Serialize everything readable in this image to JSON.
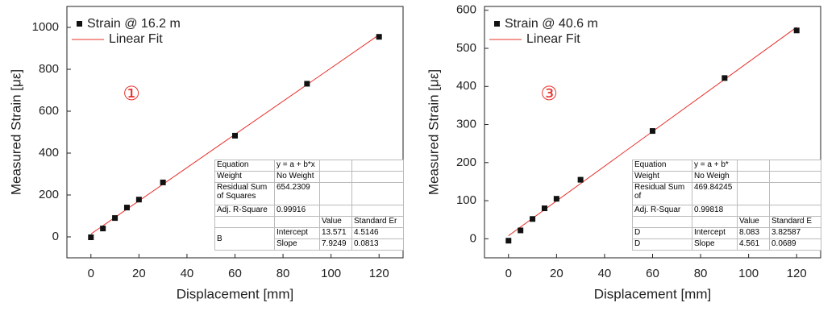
{
  "chart_data": [
    {
      "type": "scatter",
      "annotation": "①",
      "xlabel": "Displacement [mm]",
      "ylabel": "Measured Strain [με]",
      "x": [
        0,
        5,
        10,
        15,
        20,
        30,
        60,
        90,
        120
      ],
      "series": [
        {
          "name": "Strain @ 16.2 m",
          "color": "#111111",
          "values": [
            -2,
            40,
            90,
            140,
            178,
            260,
            483,
            731,
            955
          ]
        }
      ],
      "fit": {
        "name": "Linear Fit",
        "color": "#e8302a"
      },
      "xlim": [
        -10,
        130
      ],
      "xticks": [
        0,
        20,
        40,
        60,
        80,
        100,
        120
      ],
      "ylim": [
        -100,
        1100
      ],
      "yticks": [
        0,
        200,
        400,
        600,
        800,
        1000
      ],
      "table": {
        "equation_label": "Equation",
        "equation": "y = a + b*x",
        "weight_label": "Weight",
        "weight": "No Weight",
        "rss_label": "Residual Sum of Squares",
        "rss": "654.2309",
        "adj_label": "Adj. R-Square",
        "adj": "0.99916",
        "value_header": "Value",
        "se_header": "Standard Er",
        "rows": [
          {
            "name": "B",
            "param": "Intercept",
            "value": 13.571,
            "se": 4.5146
          },
          {
            "param": "Slope",
            "value": 7.9249,
            "se": 0.0813
          }
        ]
      }
    },
    {
      "type": "scatter",
      "annotation": "③",
      "xlabel": "Displacement [mm]",
      "ylabel": "Measured Strain [με]",
      "x": [
        0,
        5,
        10,
        15,
        20,
        30,
        60,
        90,
        120
      ],
      "series": [
        {
          "name": "Strain @ 40.6 m",
          "color": "#111111",
          "values": [
            -5,
            22,
            52,
            80,
            105,
            155,
            283,
            422,
            547
          ]
        }
      ],
      "fit": {
        "name": "Linear Fit",
        "color": "#e8302a"
      },
      "xlim": [
        -10,
        130
      ],
      "xticks": [
        0,
        20,
        40,
        60,
        80,
        100,
        120
      ],
      "ylim": [
        -50,
        610
      ],
      "yticks": [
        0,
        100,
        200,
        300,
        400,
        500,
        600
      ],
      "table": {
        "equation_label": "Equation",
        "equation": "y = a + b*",
        "weight_label": "Weight",
        "weight": "No Weigh",
        "rss_label": "Residual Sum of",
        "rss": "469.84245",
        "adj_label": "Adj. R-Squar",
        "adj": "0.99818",
        "value_header": "Value",
        "se_header": "Standard E",
        "rows": [
          {
            "name": "D",
            "param": "Intercept",
            "value": 8.083,
            "se": 3.82587
          },
          {
            "name": "D",
            "param": "Slope",
            "value": 4.561,
            "se": 0.0689
          }
        ]
      }
    }
  ]
}
